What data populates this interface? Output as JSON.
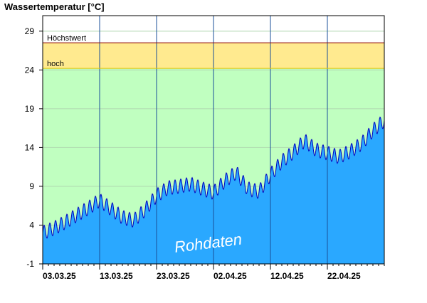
{
  "chart_data": {
    "type": "area",
    "title": "Wassertemperatur [°C]",
    "ylabel": "Wassertemperatur [°C]",
    "ylim": [
      -1,
      31
    ],
    "yticks": [
      -1,
      4,
      9,
      14,
      19,
      24,
      29
    ],
    "x_start": "2025-03-03",
    "x_end": "2025-05-02",
    "xticks": [
      "03.03.25",
      "13.03.25",
      "23.03.25",
      "02.04.25",
      "12.04.25",
      "22.04.25"
    ],
    "thresholds": [
      {
        "name": "Höchstwert",
        "value": 27.5,
        "color": "#8b0000"
      },
      {
        "name": "hoch",
        "value": 24.2,
        "color": "#e6c200"
      }
    ],
    "bands": [
      {
        "from": 24.2,
        "to": 27.5,
        "color": "#ffea8f"
      },
      {
        "from": -1,
        "to": 24.2,
        "color": "#c0ffc0"
      }
    ],
    "series": [
      {
        "color": "#2aa8ff",
        "line_color": "#0000c0",
        "points": [
          [
            "2025-03-03",
            3.0
          ],
          [
            "2025-03-05",
            3.6
          ],
          [
            "2025-03-07",
            4.4
          ],
          [
            "2025-03-09",
            5.3
          ],
          [
            "2025-03-11",
            6.2
          ],
          [
            "2025-03-13",
            7.2
          ],
          [
            "2025-03-15",
            6.1
          ],
          [
            "2025-03-17",
            5.0
          ],
          [
            "2025-03-19",
            4.6
          ],
          [
            "2025-03-21",
            6.0
          ],
          [
            "2025-03-23",
            7.8
          ],
          [
            "2025-03-25",
            8.8
          ],
          [
            "2025-03-27",
            9.0
          ],
          [
            "2025-03-29",
            9.3
          ],
          [
            "2025-03-31",
            8.7
          ],
          [
            "2025-04-02",
            8.2
          ],
          [
            "2025-04-04",
            9.7
          ],
          [
            "2025-04-06",
            10.8
          ],
          [
            "2025-04-08",
            8.7
          ],
          [
            "2025-04-10",
            8.3
          ],
          [
            "2025-04-12",
            10.5
          ],
          [
            "2025-04-14",
            12.2
          ],
          [
            "2025-04-16",
            13.4
          ],
          [
            "2025-04-18",
            14.9
          ],
          [
            "2025-04-20",
            13.7
          ],
          [
            "2025-04-22",
            13.3
          ],
          [
            "2025-04-24",
            12.8
          ],
          [
            "2025-04-26",
            13.5
          ],
          [
            "2025-04-28",
            14.5
          ],
          [
            "2025-04-30",
            16.2
          ],
          [
            "2025-05-02",
            17.5
          ]
        ]
      }
    ],
    "grid": true,
    "watermark": "Rohdaten"
  }
}
